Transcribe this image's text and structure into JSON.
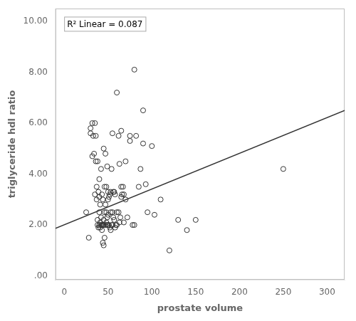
{
  "chart_data": {
    "type": "scatter",
    "xlabel": "prostate volume",
    "ylabel": "triglyceride hdl ratio",
    "annotation": "R² Linear = 0.087",
    "xlim": [
      -10,
      320
    ],
    "ylim": [
      -0.15,
      10.5
    ],
    "xticks": [
      0,
      50,
      100,
      150,
      200,
      250,
      300
    ],
    "yticks": [
      {
        "value": 0.0,
        "label": ".00"
      },
      {
        "value": 2.0,
        "label": "2.00"
      },
      {
        "value": 4.0,
        "label": "4.00"
      },
      {
        "value": 6.0,
        "label": "6.00"
      },
      {
        "value": 8.0,
        "label": "8.00"
      },
      {
        "value": 10.0,
        "label": "10.00"
      }
    ],
    "grid": false,
    "series": [
      {
        "type": "scatter",
        "color": "#333333",
        "marker": "circle",
        "x": [
          25,
          28,
          30,
          30,
          32,
          32,
          33,
          34,
          35,
          35,
          36,
          36,
          37,
          37,
          38,
          38,
          38,
          39,
          39,
          40,
          40,
          40,
          40,
          41,
          41,
          41,
          42,
          42,
          42,
          43,
          43,
          43,
          44,
          44,
          44,
          45,
          45,
          45,
          45,
          46,
          46,
          46,
          47,
          47,
          47,
          48,
          48,
          48,
          49,
          49,
          49,
          50,
          50,
          50,
          50,
          51,
          51,
          52,
          52,
          53,
          53,
          53,
          54,
          54,
          55,
          55,
          55,
          56,
          56,
          57,
          57,
          58,
          58,
          59,
          60,
          60,
          60,
          62,
          62,
          63,
          63,
          64,
          65,
          65,
          65,
          66,
          67,
          68,
          68,
          70,
          70,
          72,
          75,
          75,
          78,
          80,
          80,
          82,
          85,
          87,
          90,
          90,
          93,
          95,
          100,
          103,
          110,
          120,
          130,
          140,
          150,
          250
        ],
        "values": [
          2.5,
          1.5,
          5.6,
          5.8,
          4.7,
          6.0,
          5.5,
          4.8,
          3.2,
          6.0,
          4.5,
          5.5,
          3.0,
          3.5,
          2.0,
          2.2,
          4.5,
          1.9,
          3.3,
          2.0,
          2.5,
          3.1,
          3.8,
          1.9,
          2.1,
          2.8,
          2.0,
          2.3,
          4.2,
          1.8,
          2.0,
          3.2,
          1.3,
          2.0,
          3.0,
          1.2,
          2.0,
          2.2,
          5.0,
          1.5,
          2.5,
          3.5,
          2.0,
          2.8,
          4.8,
          2.1,
          2.5,
          3.5,
          2.0,
          2.3,
          4.3,
          2.0,
          2.4,
          3.0,
          3.3,
          2.0,
          3.1,
          1.9,
          3.2,
          1.8,
          2.5,
          3.3,
          2.0,
          4.2,
          2.0,
          2.5,
          5.6,
          2.3,
          3.3,
          2.2,
          3.3,
          1.9,
          3.2,
          2.0,
          2.0,
          2.5,
          7.2,
          2.5,
          5.5,
          2.1,
          4.4,
          2.3,
          3.1,
          3.5,
          5.7,
          3.2,
          3.5,
          2.1,
          3.2,
          3.0,
          4.5,
          2.3,
          5.3,
          5.5,
          2.0,
          8.1,
          2.0,
          5.5,
          3.5,
          4.2,
          5.2,
          6.5,
          3.6,
          2.5,
          5.1,
          2.4,
          3.0,
          1.0,
          2.2,
          1.8,
          2.2,
          4.2
        ]
      },
      {
        "type": "line",
        "color": "#333333",
        "line_style": "solid",
        "x": [
          -10,
          320
        ],
        "values": [
          1.87,
          6.5
        ]
      }
    ]
  }
}
